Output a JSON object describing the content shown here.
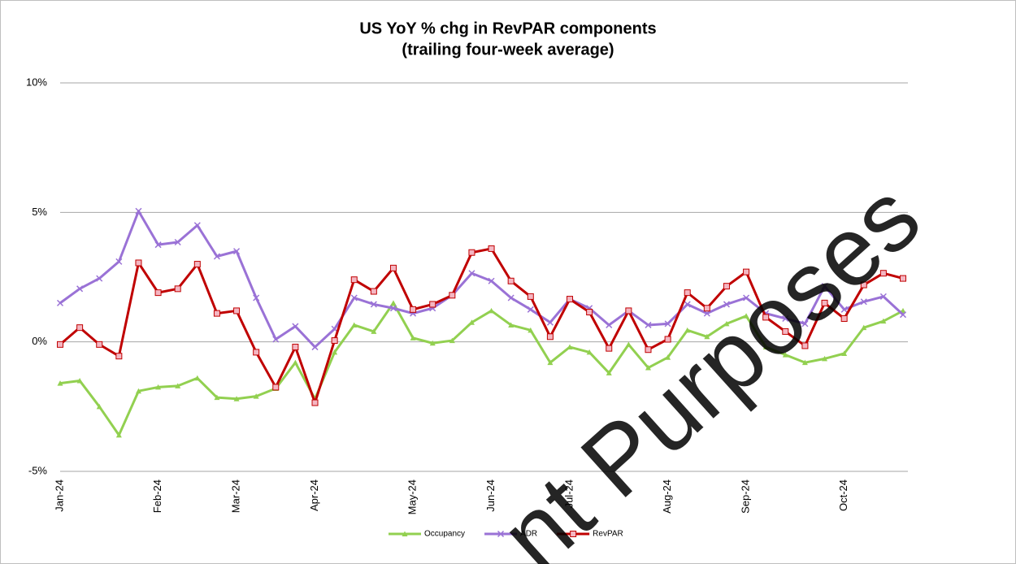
{
  "chart_data": {
    "type": "line",
    "title": "US YoY % chg in RevPAR components",
    "subtitle": "(trailing four-week average)",
    "categories": [
      "Jan-24",
      null,
      null,
      null,
      null,
      "Feb-24",
      null,
      null,
      null,
      "Mar-24",
      null,
      null,
      null,
      "Apr-24",
      null,
      null,
      null,
      null,
      "May-24",
      null,
      null,
      null,
      "Jun-24",
      null,
      null,
      null,
      "Jul-24",
      null,
      null,
      null,
      null,
      "Aug-24",
      null,
      null,
      null,
      "Sep-24",
      null,
      null,
      null,
      null,
      "Oct-24",
      null,
      null,
      null
    ],
    "series": [
      {
        "name": "Occupancy",
        "color": "#92d050",
        "marker": "triangle",
        "values": [
          -1.6,
          -1.5,
          -2.5,
          -3.6,
          -1.9,
          -1.75,
          -1.7,
          -1.4,
          -2.15,
          -2.2,
          -2.1,
          -1.8,
          -0.8,
          -2.2,
          -0.4,
          0.65,
          0.4,
          1.5,
          0.15,
          -0.05,
          0.05,
          0.75,
          1.2,
          0.65,
          0.45,
          -0.8,
          -0.2,
          -0.4,
          -1.2,
          -0.1,
          -1.0,
          -0.6,
          0.45,
          0.2,
          0.7,
          1.0,
          -0.2,
          -0.5,
          -0.8,
          -0.65,
          -0.45,
          0.55,
          0.8,
          1.2
        ]
      },
      {
        "name": "ADR",
        "color": "#9a72d6",
        "marker": "x",
        "values": [
          1.5,
          2.05,
          2.45,
          3.1,
          5.05,
          3.75,
          3.85,
          4.5,
          3.3,
          3.5,
          1.7,
          0.1,
          0.6,
          -0.2,
          0.5,
          1.7,
          1.45,
          1.3,
          1.1,
          1.3,
          1.8,
          2.65,
          2.35,
          1.7,
          1.25,
          0.75,
          1.65,
          1.3,
          0.65,
          1.2,
          0.65,
          0.7,
          1.45,
          1.1,
          1.45,
          1.7,
          1.1,
          0.9,
          0.7,
          2.15,
          1.25,
          1.55,
          1.75,
          1.05
        ]
      },
      {
        "name": "RevPAR",
        "color": "#c00000",
        "marker": "square",
        "values": [
          -0.1,
          0.55,
          -0.1,
          -0.55,
          3.05,
          1.9,
          2.05,
          3.0,
          1.1,
          1.2,
          -0.4,
          -1.75,
          -0.2,
          -2.35,
          0.05,
          2.4,
          1.95,
          2.85,
          1.25,
          1.45,
          1.8,
          3.45,
          3.6,
          2.35,
          1.75,
          0.2,
          1.65,
          1.15,
          -0.25,
          1.2,
          -0.3,
          0.1,
          1.9,
          1.3,
          2.15,
          2.7,
          0.95,
          0.4,
          -0.15,
          1.5,
          0.9,
          2.2,
          2.65,
          2.45
        ]
      }
    ],
    "ylim": [
      -5,
      10
    ],
    "yticks": [
      {
        "value": -5,
        "label": "-5%"
      },
      {
        "value": 0,
        "label": "0%"
      },
      {
        "value": 5,
        "label": "5%"
      },
      {
        "value": 10,
        "label": "10%"
      }
    ],
    "grid": true,
    "legend": "bottom"
  },
  "watermark": "nt Purposes"
}
